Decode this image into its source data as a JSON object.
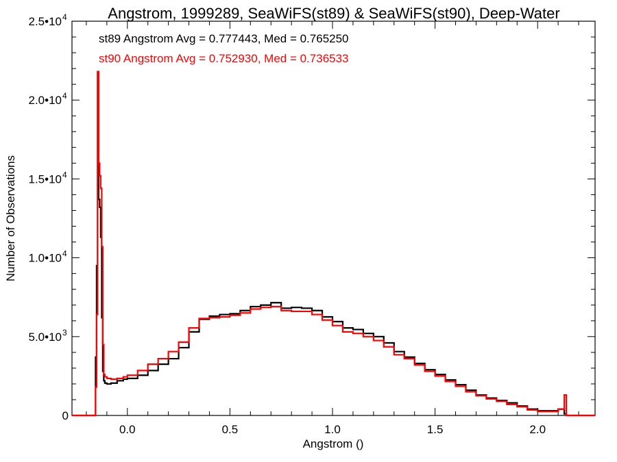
{
  "chart_data": {
    "type": "line",
    "title": "Angstrom, 1999289, SeaWiFS(st89) & SeaWiFS(st90), Deep-Water",
    "xlabel": "Angstrom ()",
    "ylabel": "Number of Observations",
    "xlim": [
      -0.27,
      2.28
    ],
    "ylim": [
      0,
      25000
    ],
    "xticks": [
      {
        "value": 0.0,
        "label": "0.0"
      },
      {
        "value": 0.5,
        "label": "0.5"
      },
      {
        "value": 1.0,
        "label": "1.0"
      },
      {
        "value": 1.5,
        "label": "1.5"
      },
      {
        "value": 2.0,
        "label": "2.0"
      }
    ],
    "yticks": [
      {
        "value": 0,
        "label": "0",
        "exp": ""
      },
      {
        "value": 5000,
        "label": "5.0•10",
        "exp": "3"
      },
      {
        "value": 10000,
        "label": "1.0•10",
        "exp": "4"
      },
      {
        "value": 15000,
        "label": "1.5•10",
        "exp": "4"
      },
      {
        "value": 20000,
        "label": "2.0•10",
        "exp": "4"
      },
      {
        "value": 25000,
        "label": "2.5•10",
        "exp": "4"
      }
    ],
    "annotations": [
      {
        "text": "st89 Angstrom Avg = 0.777443, Med = 0.765250",
        "color": "#000000"
      },
      {
        "text": "st90 Angstrom Avg = 0.752930, Med = 0.736533",
        "color": "#ff0000"
      }
    ],
    "series": [
      {
        "color": "#000000",
        "x": [
          -0.27,
          -0.16,
          -0.155,
          -0.15,
          -0.145,
          -0.14,
          -0.135,
          -0.13,
          -0.125,
          -0.12,
          -0.115,
          -0.11,
          -0.1,
          -0.08,
          -0.05,
          -0.02,
          0.0,
          0.05,
          0.1,
          0.15,
          0.2,
          0.25,
          0.3,
          0.35,
          0.4,
          0.45,
          0.5,
          0.55,
          0.6,
          0.65,
          0.7,
          0.75,
          0.8,
          0.85,
          0.9,
          0.95,
          1.0,
          1.05,
          1.1,
          1.15,
          1.2,
          1.25,
          1.3,
          1.35,
          1.4,
          1.45,
          1.5,
          1.55,
          1.6,
          1.65,
          1.7,
          1.75,
          1.8,
          1.85,
          1.9,
          1.95,
          2.0,
          2.05,
          2.1,
          2.13,
          2.14,
          2.16,
          2.28
        ],
        "y": [
          0,
          0,
          3700,
          9500,
          21800,
          13700,
          13200,
          11300,
          6200,
          2800,
          2200,
          2050,
          2000,
          2050,
          2200,
          2300,
          2350,
          2550,
          2850,
          3250,
          3600,
          4300,
          5300,
          6100,
          6300,
          6400,
          6450,
          6650,
          6900,
          7000,
          7150,
          6800,
          6850,
          6800,
          6650,
          6250,
          5950,
          5550,
          5450,
          5200,
          5000,
          4600,
          4050,
          3700,
          3300,
          2900,
          2600,
          2250,
          1950,
          1600,
          1300,
          1100,
          950,
          800,
          600,
          400,
          300,
          300,
          400,
          100,
          0,
          0,
          0
        ]
      },
      {
        "color": "#ff0000",
        "x": [
          -0.27,
          -0.16,
          -0.155,
          -0.15,
          -0.145,
          -0.14,
          -0.135,
          -0.13,
          -0.125,
          -0.12,
          -0.115,
          -0.11,
          -0.1,
          -0.08,
          -0.05,
          -0.02,
          0.0,
          0.05,
          0.1,
          0.15,
          0.2,
          0.25,
          0.3,
          0.35,
          0.4,
          0.45,
          0.5,
          0.55,
          0.6,
          0.65,
          0.7,
          0.75,
          0.8,
          0.85,
          0.9,
          0.95,
          1.0,
          1.05,
          1.1,
          1.15,
          1.2,
          1.25,
          1.3,
          1.35,
          1.4,
          1.45,
          1.5,
          1.55,
          1.6,
          1.65,
          1.7,
          1.75,
          1.8,
          1.85,
          1.9,
          1.95,
          2.0,
          2.05,
          2.1,
          2.13,
          2.14,
          2.16,
          2.28
        ],
        "y": [
          0,
          0,
          1800,
          6400,
          21800,
          16000,
          15200,
          14400,
          10700,
          4500,
          2600,
          2450,
          2350,
          2300,
          2350,
          2450,
          2550,
          2850,
          3250,
          3600,
          4050,
          4650,
          5550,
          6150,
          6200,
          6250,
          6350,
          6500,
          6750,
          6850,
          6900,
          6650,
          6600,
          6600,
          6400,
          6050,
          5700,
          5300,
          5200,
          5000,
          4750,
          4350,
          3850,
          3600,
          3200,
          2800,
          2500,
          2150,
          1850,
          1500,
          1250,
          1050,
          900,
          700,
          550,
          350,
          250,
          250,
          400,
          1300,
          0,
          0,
          0
        ]
      }
    ]
  }
}
